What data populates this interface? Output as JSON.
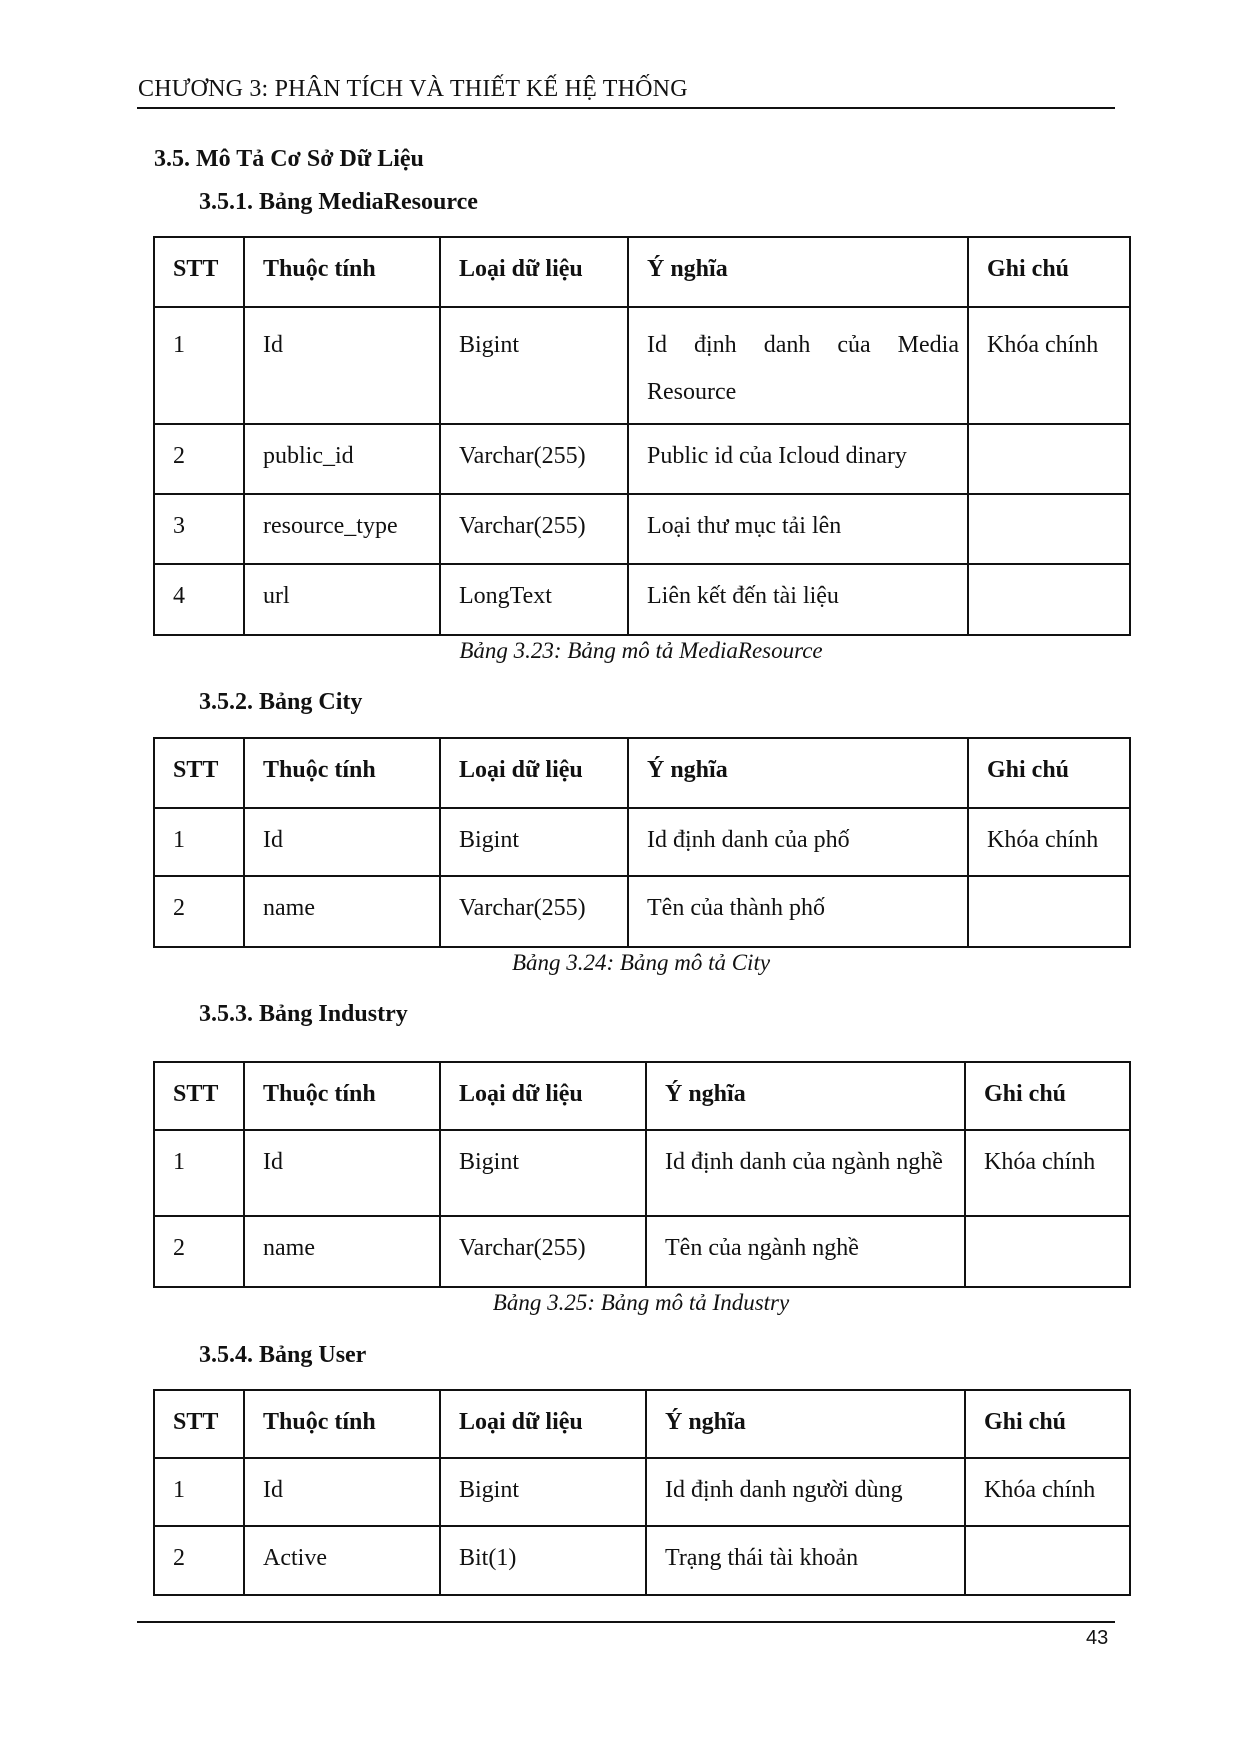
{
  "header": {
    "chapter": "CHƯƠNG 3: PHÂN TÍCH VÀ THIẾT KẾ HỆ THỐNG"
  },
  "section": {
    "title": "3.5. Mô Tả Cơ Sở Dữ Liệu"
  },
  "columns": [
    "STT",
    "Thuộc tính",
    "Loại dữ liệu",
    "Ý nghĩa",
    "Ghi chú"
  ],
  "tables": [
    {
      "heading": "3.5.1. Bảng MediaResource",
      "caption": "Bảng 3.23: Bảng mô tả MediaResource",
      "rows": [
        [
          "1",
          "Id",
          "Bigint",
          "Id định danh của Media Resource",
          "Khóa chính"
        ],
        [
          "2",
          "public_id",
          "Varchar(255)",
          "Public id của Icloud dinary",
          ""
        ],
        [
          "3",
          "resource_type",
          "Varchar(255)",
          "Loại thư mục tải lên",
          ""
        ],
        [
          "4",
          "url",
          "LongText",
          "Liên kết đến tài liệu",
          ""
        ]
      ]
    },
    {
      "heading": "3.5.2. Bảng City",
      "caption": "Bảng 3.24: Bảng mô tả City",
      "rows": [
        [
          "1",
          "Id",
          "Bigint",
          "Id định danh của phố",
          "Khóa chính"
        ],
        [
          "2",
          "name",
          "Varchar(255)",
          "Tên của thành phố",
          ""
        ]
      ]
    },
    {
      "heading": "3.5.3. Bảng Industry",
      "caption": "Bảng 3.25: Bảng mô tả Industry",
      "rows": [
        [
          "1",
          "Id",
          "Bigint",
          "Id định danh của ngành nghề",
          "Khóa chính"
        ],
        [
          "2",
          "name",
          "Varchar(255)",
          "Tên của ngành nghề",
          ""
        ]
      ]
    },
    {
      "heading": "3.5.4. Bảng User",
      "rows": [
        [
          "1",
          "Id",
          "Bigint",
          "Id định danh người dùng",
          "Khóa chính"
        ],
        [
          "2",
          "Active",
          "Bit(1)",
          "Trạng thái tài khoản",
          ""
        ]
      ]
    }
  ],
  "footer": {
    "page_number": "43"
  }
}
